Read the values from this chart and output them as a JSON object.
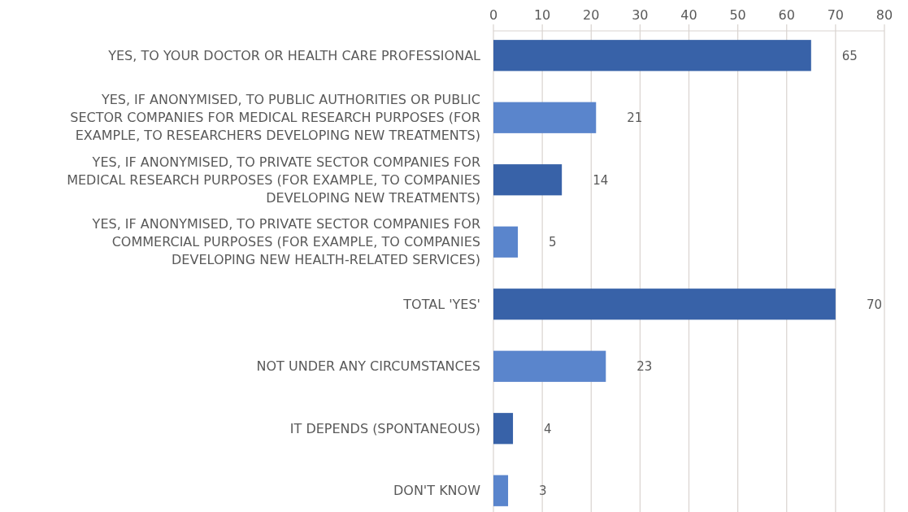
{
  "chart_data": {
    "type": "bar",
    "orientation": "horizontal",
    "categories": [
      "YES, TO YOUR DOCTOR OR HEALTH CARE PROFESSIONAL",
      "YES, IF ANONYMISED, TO PUBLIC AUTHORITIES OR PUBLIC SECTOR COMPANIES FOR MEDICAL RESEARCH PURPOSES (FOR EXAMPLE, TO RESEARCHERS DEVELOPING NEW TREATMENTS)",
      "YES, IF ANONYMISED, TO PRIVATE SECTOR COMPANIES FOR MEDICAL RESEARCH PURPOSES (FOR EXAMPLE, TO COMPANIES DEVELOPING NEW TREATMENTS)",
      "YES, IF ANONYMISED, TO PRIVATE SECTOR COMPANIES FOR COMMERCIAL PURPOSES (FOR EXAMPLE, TO COMPANIES DEVELOPING NEW HEALTH-RELATED SERVICES)",
      "TOTAL 'YES'",
      "NOT UNDER ANY CIRCUMSTANCES",
      "IT DEPENDS (SPONTANEOUS)",
      "DON'T KNOW"
    ],
    "values": [
      65,
      21,
      14,
      5,
      70,
      23,
      4,
      3
    ],
    "colors": [
      "#3862a8",
      "#5a85cc",
      "#3862a8",
      "#5a85cc",
      "#3862a8",
      "#5a85cc",
      "#3862a8",
      "#5a85cc"
    ],
    "xlim": [
      0,
      80
    ],
    "xticks": [
      0,
      10,
      20,
      30,
      40,
      50,
      60,
      70,
      80
    ],
    "grid": "x",
    "data_labels": true
  }
}
